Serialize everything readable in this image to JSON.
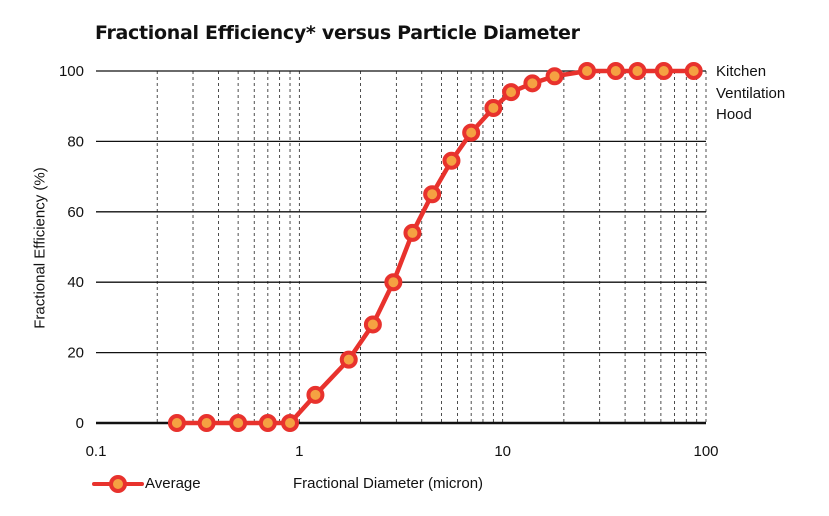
{
  "chart_data": {
    "type": "line",
    "title": "Fractional Efficiency* versus Particle Diameter",
    "xlabel": "Fractional Diameter (micron)",
    "ylabel": "Fractional Efficiency (%)",
    "xscale": "log",
    "xlim": [
      0.1,
      100
    ],
    "ylim": [
      0,
      100
    ],
    "xticks": [
      0.1,
      1,
      10,
      100
    ],
    "xtick_labels": [
      "0.1",
      "1",
      "10",
      "100"
    ],
    "yticks": [
      0,
      20,
      40,
      60,
      80,
      100
    ],
    "ytick_labels": [
      "0",
      "20",
      "40",
      "60",
      "80",
      "100"
    ],
    "grid": "horizontal solid, vertical dashed",
    "legend_position": "bottom-left",
    "annotation": [
      "Kitchen",
      "Ventilation",
      "Hood"
    ],
    "series": [
      {
        "name": "Average",
        "color": "#e8322d",
        "marker_fill": "#f5a142",
        "x": [
          0.25,
          0.35,
          0.5,
          0.7,
          0.9,
          1.2,
          1.75,
          2.3,
          2.9,
          3.6,
          4.5,
          5.6,
          7.0,
          9.0,
          11.0,
          14.0,
          18.0,
          26.0,
          36.0,
          46.0,
          62.0,
          87.0
        ],
        "y": [
          0,
          0,
          0,
          0,
          0,
          8,
          18,
          28,
          40,
          54,
          65,
          74.5,
          82.5,
          89.5,
          94,
          96.5,
          98.5,
          100,
          100,
          100,
          100,
          100
        ]
      }
    ]
  }
}
